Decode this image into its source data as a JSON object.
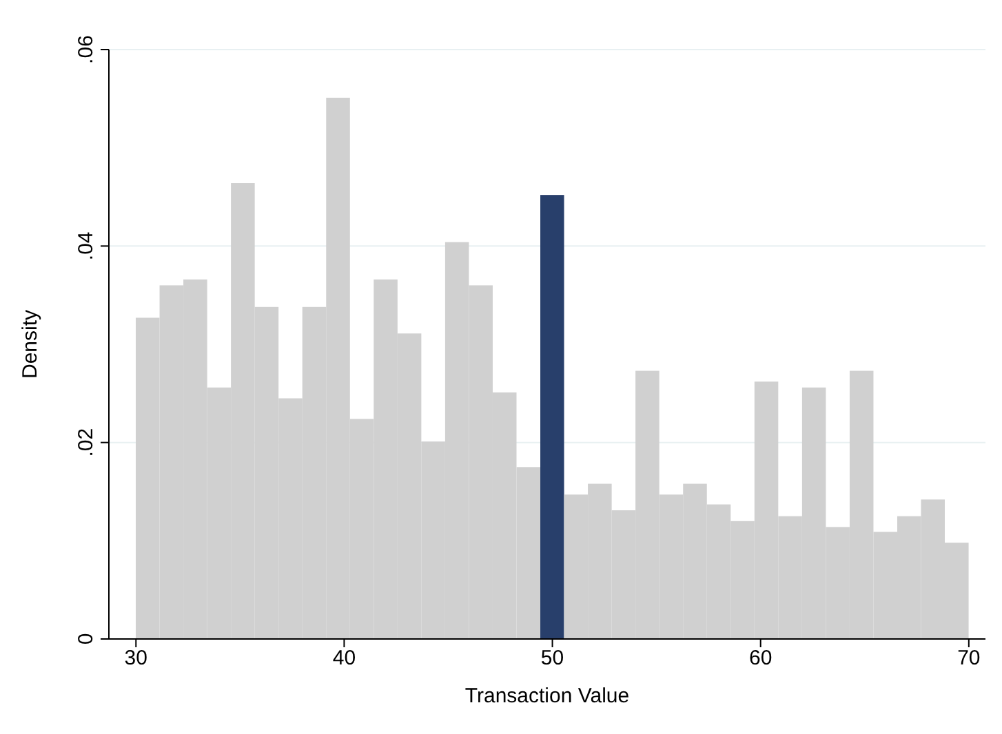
{
  "chart_data": {
    "type": "histogram",
    "xlabel": "Transaction Value",
    "ylabel": "Density",
    "bins": [
      30,
      31.143,
      32.286,
      33.429,
      34.571,
      35.714,
      36.857,
      38,
      39.143,
      40.286,
      41.429,
      42.571,
      43.714,
      44.857,
      46,
      47.143,
      48.286,
      49.429,
      50.571,
      51.714,
      52.857,
      54,
      55.143,
      56.286,
      57.429,
      58.571,
      59.714,
      60.857,
      62,
      63.143,
      64.286,
      65.429,
      66.571,
      67.714,
      68.857,
      70
    ],
    "values": [
      0.0327,
      0.036,
      0.0366,
      0.0256,
      0.0464,
      0.0338,
      0.0245,
      0.0338,
      0.0551,
      0.0224,
      0.0366,
      0.0311,
      0.0201,
      0.0404,
      0.036,
      0.0251,
      0.0175,
      0.0452,
      0.0147,
      0.0158,
      0.0131,
      0.0273,
      0.0147,
      0.0158,
      0.0137,
      0.012,
      0.0262,
      0.0125,
      0.0256,
      0.0114,
      0.0273,
      0.0109,
      0.0125,
      0.0142,
      0.0098
    ],
    "colors": [
      "#d0d0d0",
      "#d0d0d0",
      "#d0d0d0",
      "#d0d0d0",
      "#d0d0d0",
      "#d0d0d0",
      "#d0d0d0",
      "#d0d0d0",
      "#d0d0d0",
      "#d0d0d0",
      "#d0d0d0",
      "#d0d0d0",
      "#d0d0d0",
      "#d0d0d0",
      "#d0d0d0",
      "#d0d0d0",
      "#d0d0d0",
      "#283f6b",
      "#d0d0d0",
      "#d0d0d0",
      "#d0d0d0",
      "#d0d0d0",
      "#d0d0d0",
      "#d0d0d0",
      "#d0d0d0",
      "#d0d0d0",
      "#d0d0d0",
      "#d0d0d0",
      "#d0d0d0",
      "#d0d0d0",
      "#d0d0d0",
      "#d0d0d0",
      "#d0d0d0",
      "#d0d0d0",
      "#d0d0d0"
    ],
    "xlim": [
      28.7,
      70.8
    ],
    "xticks": [
      30,
      40,
      50,
      60,
      70
    ],
    "ylim": [
      0,
      0.06
    ],
    "yticks": [
      {
        "value": 0,
        "label": "0"
      },
      {
        "value": 0.02,
        "label": ".02"
      },
      {
        "value": 0.04,
        "label": ".04"
      },
      {
        "value": 0.06,
        "label": ".06"
      }
    ],
    "grid": "y",
    "legend": false
  }
}
